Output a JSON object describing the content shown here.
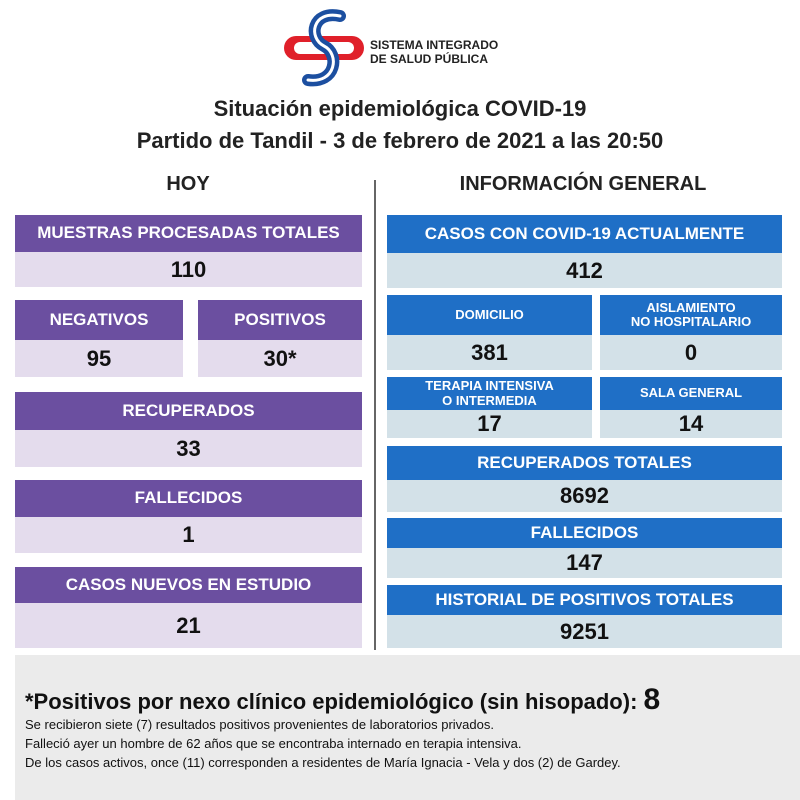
{
  "header": {
    "logo_lines": [
      "SISTEMA INTEGRADO",
      "DE SALUD PÚBLICA"
    ],
    "title_lines": [
      "Situación epidemiológica COVID-19",
      "Partido de Tandil - 3 de febrero de 2021 a las 20:50"
    ]
  },
  "hoy": {
    "heading": "HOY",
    "boxes": [
      {
        "label": "MUESTRAS PROCESADAS TOTALES",
        "value": "110"
      },
      {
        "label": "NEGATIVOS",
        "value": "95"
      },
      {
        "label": "POSITIVOS",
        "value": "30*"
      },
      {
        "label": "RECUPERADOS",
        "value": "33"
      },
      {
        "label": "FALLECIDOS",
        "value": "1"
      },
      {
        "label": "CASOS NUEVOS EN ESTUDIO",
        "value": "21"
      }
    ]
  },
  "general": {
    "heading": "INFORMACIÓN GENERAL",
    "boxes": [
      {
        "label": "CASOS CON COVID-19 ACTUALMENTE",
        "value": "412"
      },
      {
        "label": "DOMICILIO",
        "value": "381"
      },
      {
        "label": "AISLAMIENTO\nNO HOSPITALARIO",
        "value": "0"
      },
      {
        "label": "TERAPIA INTENSIVA\nO INTERMEDIA",
        "value": "17"
      },
      {
        "label": "SALA GENERAL",
        "value": "14"
      },
      {
        "label": "RECUPERADOS TOTALES",
        "value": "8692"
      },
      {
        "label": "FALLECIDOS",
        "value": "147"
      },
      {
        "label": "HISTORIAL DE POSITIVOS TOTALES",
        "value": "9251"
      }
    ]
  },
  "footer": {
    "headline": "*Positivos por nexo clínico epidemiológico (sin hisopado):",
    "headline_value": "8",
    "notes": [
      "Se recibieron siete (7) resultados positivos provenientes de laboratorios privados.",
      "Falleció ayer un hombre de 62 años que se encontraba internado en terapia intensiva.",
      "De los casos activos, once (11) corresponden a residentes de María Ignacia - Vela y dos (2) de Gardey."
    ]
  }
}
